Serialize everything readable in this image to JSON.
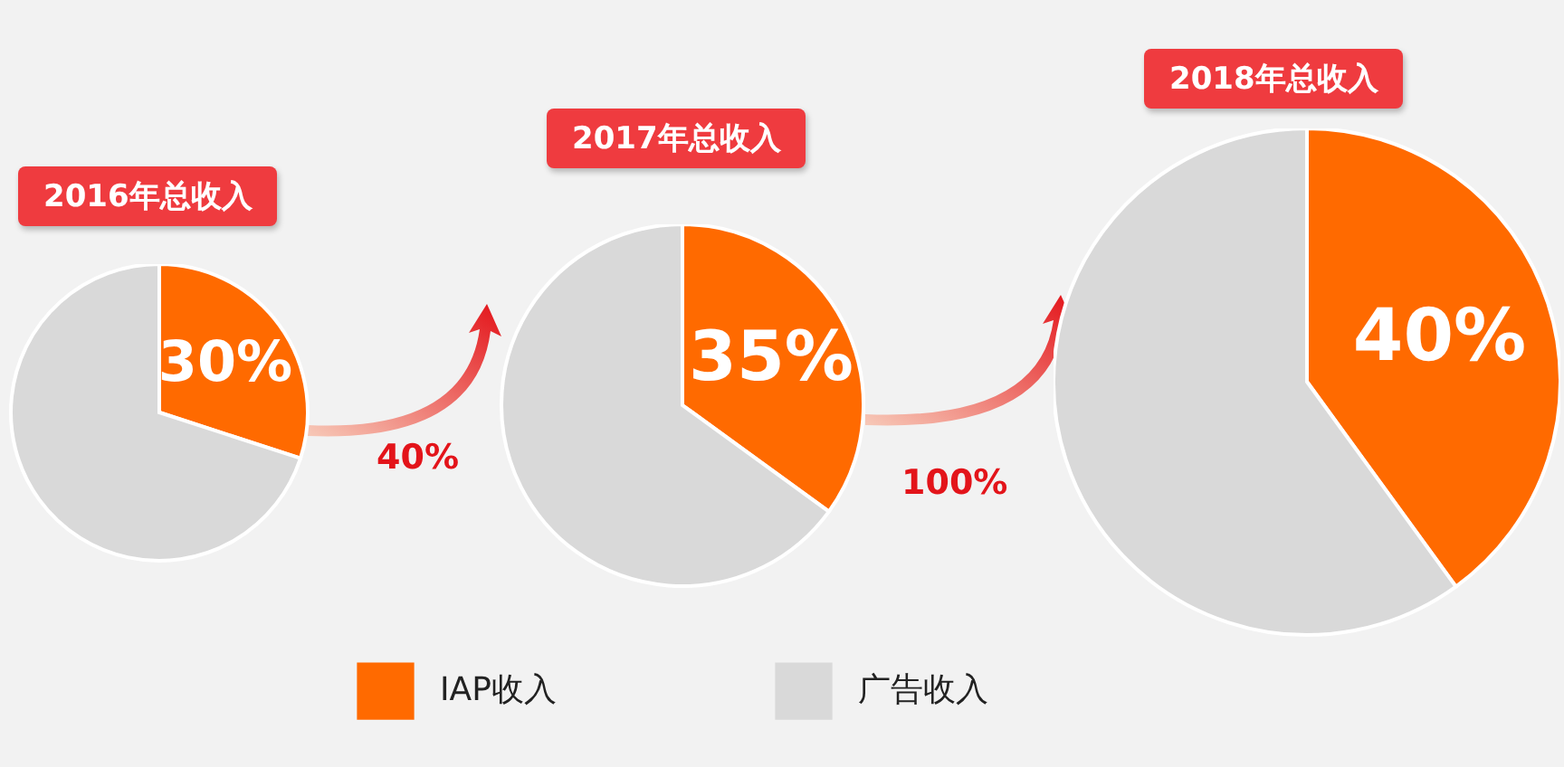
{
  "chart_data": [
    {
      "type": "pie",
      "title": "2016年总收入",
      "categories": [
        null,
        null
      ],
      "values": [
        30,
        70
      ],
      "colors": [
        "#ff6a00",
        "#d9d9d9"
      ],
      "value_labels": [
        "30%",
        null
      ],
      "annotations": [
        "40%"
      ]
    },
    {
      "type": "pie",
      "title": "2017年总收入",
      "categories": [
        "IAP收入",
        "广告收入"
      ],
      "values": [
        35,
        65
      ],
      "colors": [
        "#ff6a00",
        "#d9d9d9"
      ],
      "value_labels": [
        "35%",
        null
      ],
      "annotations": [
        "100%"
      ],
      "legend": "bottom"
    },
    {
      "type": "pie",
      "title": "2018年总收入",
      "categories": [
        null,
        null
      ],
      "values": [
        40,
        60
      ],
      "colors": [
        "#ff6a00",
        "#d9d9d9"
      ],
      "value_labels": [
        "40%",
        null
      ]
    }
  ]
}
